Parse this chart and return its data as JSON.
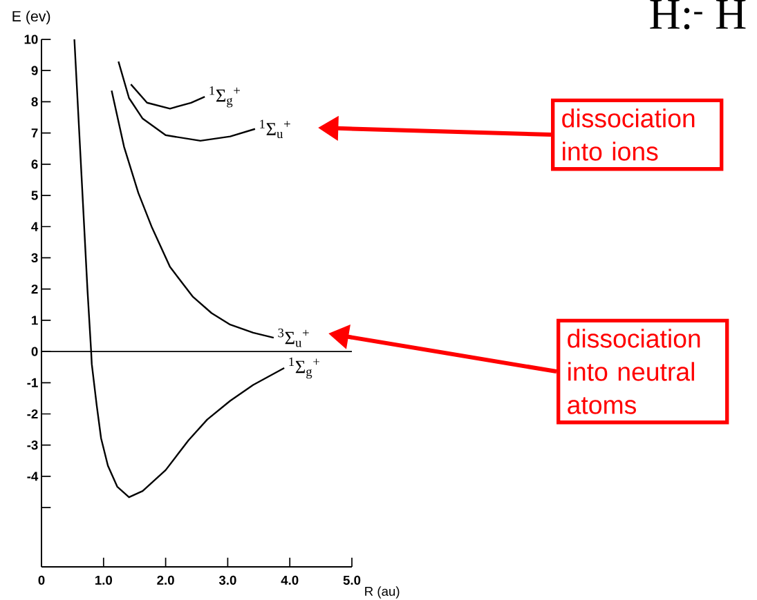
{
  "chart_data": {
    "type": "line",
    "xlabel": "R (au)",
    "ylabel": "E (ev)",
    "xlim": [
      0,
      5
    ],
    "ylim": [
      -6.9,
      10
    ],
    "xticks": [
      0,
      {
        "value": 1,
        "label": "1.0"
      },
      {
        "value": 2,
        "label": "2.0"
      },
      {
        "value": 3,
        "label": "3.0"
      },
      {
        "value": 4,
        "label": "4.0"
      },
      {
        "value": 5,
        "label": "5.0"
      }
    ],
    "yticks": [
      {
        "value": -5,
        "label": null
      },
      -4,
      -3,
      -2,
      -1,
      0,
      1,
      2,
      3,
      4,
      5,
      6,
      7,
      8,
      9,
      10
    ],
    "ref_lines": [
      {
        "axis": "y",
        "value": 0,
        "color": "#000000"
      }
    ],
    "series": [
      {
        "name": "$^{1}$Σ$_{g}$$^{+}$",
        "color": "#000000",
        "x": [
          0.53,
          0.63,
          0.74,
          0.8,
          0.81,
          0.89,
          0.96,
          1.07,
          1.22,
          1.41,
          1.63,
          2.0,
          2.37,
          2.67,
          3.04,
          3.41,
          3.91
        ],
        "values": [
          10,
          6.2,
          2,
          0,
          -0.4,
          -1.73,
          -2.78,
          -3.66,
          -4.33,
          -4.67,
          -4.47,
          -3.8,
          -2.84,
          -2.18,
          -1.58,
          -1.07,
          -0.53
        ]
      },
      {
        "name": "$^{3}$Σ$_{u}$$^{+}$",
        "color": "#000000",
        "x": [
          1.13,
          1.33,
          1.56,
          1.78,
          2.07,
          2.44,
          2.74,
          3.04,
          3.41,
          3.74
        ],
        "values": [
          8.36,
          6.56,
          5.08,
          3.97,
          2.71,
          1.75,
          1.23,
          0.86,
          0.6,
          0.44
        ]
      },
      {
        "name": "$^{1}$Σ$_{u}$$^{+}$",
        "color": "#000000",
        "x": [
          1.24,
          1.41,
          1.63,
          2.0,
          2.56,
          3.04,
          3.44
        ],
        "values": [
          9.29,
          8.12,
          7.46,
          6.93,
          6.75,
          6.89,
          7.13
        ]
      },
      {
        "name": "$^{1}$Σ$_{g}$$^{+}$",
        "color": "#000000",
        "x": [
          1.44,
          1.7,
          2.07,
          2.41,
          2.63
        ],
        "values": [
          8.56,
          7.97,
          7.78,
          7.97,
          8.16
        ]
      }
    ],
    "annotations": [
      "dissociation into ions",
      "dissociation into neutral atoms",
      "H:$^{-}$ H"
    ]
  }
}
